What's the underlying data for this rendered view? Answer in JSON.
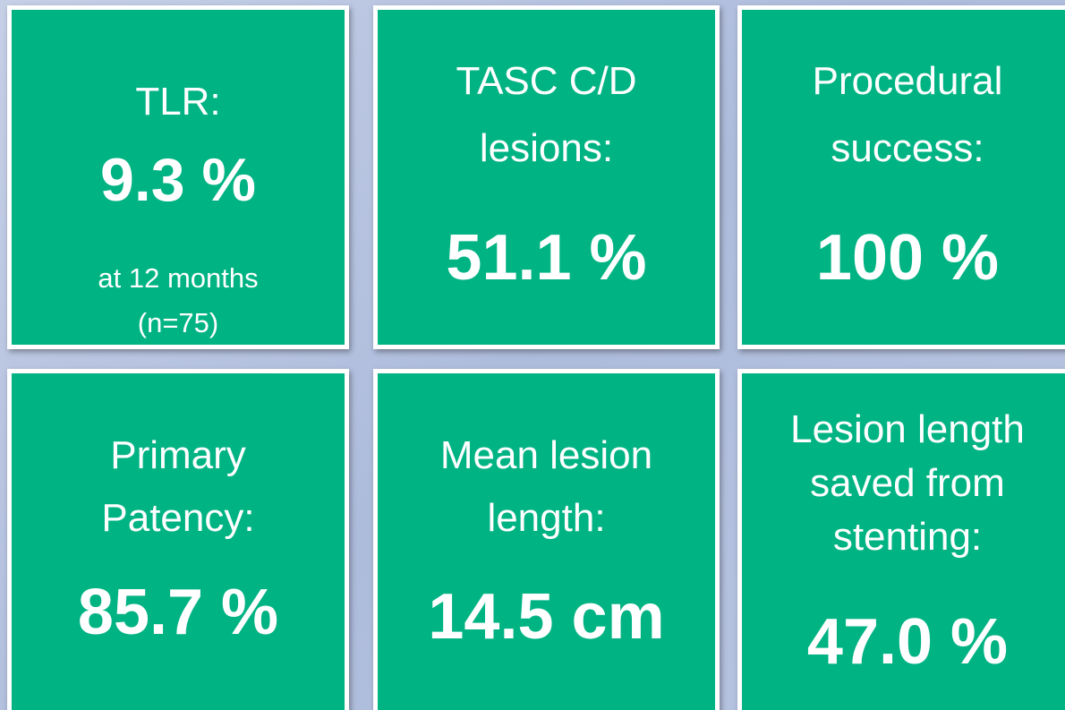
{
  "tiles": [
    {
      "label": [
        "TLR:"
      ],
      "value": "9.3 %",
      "note": [
        "at 12 months",
        "(n=75)"
      ]
    },
    {
      "label": [
        "TASC C/D",
        "lesions:"
      ],
      "value": "51.1 %"
    },
    {
      "label": [
        "Procedural",
        "success:"
      ],
      "value": "100 %"
    },
    {
      "label": [
        "Primary",
        "Patency:"
      ],
      "value": "85.7 %"
    },
    {
      "label": [
        "Mean lesion",
        "length:"
      ],
      "value": "14.5 cm"
    },
    {
      "label": [
        "Lesion length",
        "saved from",
        "stenting:"
      ],
      "value": "47.0 %"
    }
  ]
}
